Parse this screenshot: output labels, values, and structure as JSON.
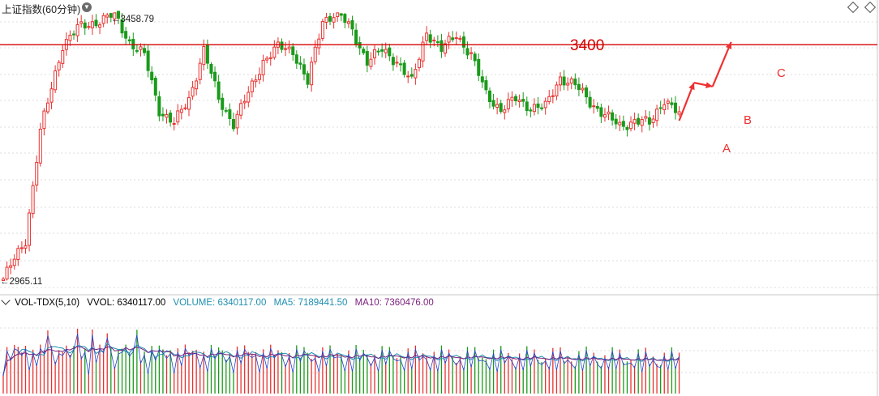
{
  "header": {
    "title": "上证指数(60分钟)",
    "title_menu_icon": "chevron-down-icon",
    "corner_icons": [
      "diamond-icon",
      "diamond-icon"
    ]
  },
  "annotations": {
    "resistance_label": "3400",
    "resistance_level": 3400,
    "high_label": "3458.79",
    "low_label": "2965.11",
    "wave_labels": [
      "A",
      "B",
      "C"
    ]
  },
  "volume_panel": {
    "indicator": "VOL-TDX(5,10)",
    "vvol": "VVOL: 6340117.00",
    "volume": "VOLUME: 6340117.00",
    "ma5": "MA5: 7189441.50",
    "ma10": "MA10: 7360476.00"
  },
  "colors": {
    "up": "#e8312f",
    "down": "#1a9a1a",
    "resistance": "#d40000",
    "arrow": "#f03030",
    "ma5": "#1f8fb0",
    "ma10": "#7a1f7a",
    "vol_line": "#2244cc"
  },
  "chart_data": {
    "type": "candlestick",
    "title": "上证指数(60分钟)",
    "ylim": [
      2945,
      3475
    ],
    "high": 3458.79,
    "low": 2965.11,
    "resistance": 3400,
    "close_path": [
      [
        0,
        2968
      ],
      [
        6,
        3040
      ],
      [
        10,
        3240
      ],
      [
        16,
        3400
      ],
      [
        20,
        3430
      ],
      [
        24,
        3440
      ],
      [
        30,
        3455
      ],
      [
        34,
        3405
      ],
      [
        38,
        3380
      ],
      [
        42,
        3280
      ],
      [
        46,
        3255
      ],
      [
        50,
        3300
      ],
      [
        54,
        3390
      ],
      [
        58,
        3300
      ],
      [
        62,
        3255
      ],
      [
        66,
        3310
      ],
      [
        70,
        3370
      ],
      [
        74,
        3395
      ],
      [
        78,
        3390
      ],
      [
        82,
        3330
      ],
      [
        86,
        3445
      ],
      [
        90,
        3460
      ],
      [
        94,
        3425
      ],
      [
        98,
        3370
      ],
      [
        102,
        3390
      ],
      [
        106,
        3370
      ],
      [
        110,
        3330
      ],
      [
        114,
        3425
      ],
      [
        118,
        3390
      ],
      [
        122,
        3420
      ],
      [
        126,
        3380
      ],
      [
        130,
        3310
      ],
      [
        134,
        3280
      ],
      [
        138,
        3300
      ],
      [
        142,
        3285
      ],
      [
        146,
        3285
      ],
      [
        150,
        3340
      ],
      [
        154,
        3325
      ],
      [
        158,
        3295
      ],
      [
        162,
        3270
      ],
      [
        166,
        3250
      ],
      [
        170,
        3260
      ],
      [
        174,
        3255
      ],
      [
        178,
        3300
      ],
      [
        182,
        3270
      ]
    ],
    "wave_path_A": [
      [
        182,
        3260
      ],
      [
        186,
        3330
      ]
    ],
    "wave_path_B": [
      [
        186,
        3330
      ],
      [
        191,
        3323
      ]
    ],
    "wave_path_C": [
      [
        191,
        3323
      ],
      [
        196,
        3405
      ]
    ],
    "volume": {
      "ylim": [
        0,
        18000000
      ],
      "last": 6340117,
      "ma5": 7189441.5,
      "ma10": 7360476
    }
  }
}
